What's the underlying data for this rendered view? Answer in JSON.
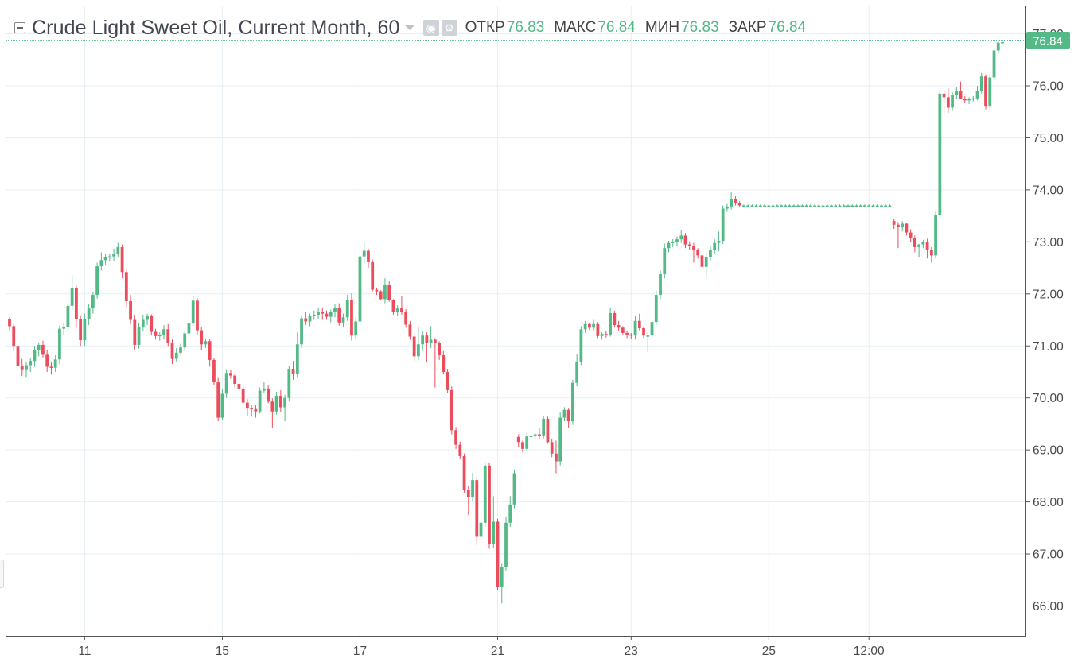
{
  "legend": {
    "title": "Crude Light Sweet Oil, Current Month, 60",
    "open_label": "ОТКР",
    "open_value": "76.83",
    "high_label": "МАКС",
    "high_value": "76.84",
    "low_label": "МИН",
    "low_value": "76.83",
    "close_label": "ЗАКР",
    "close_value": "76.84",
    "icons": [
      "eye-icon",
      "gear-icon",
      "chevron-down-icon"
    ]
  },
  "colors": {
    "up": "#53b987",
    "down": "#eb4d5c",
    "grid": "#e6eff3",
    "axis_text": "#4a4a4a",
    "last_price_bg": "#53b987"
  },
  "price_label": "76.84",
  "chart_data": {
    "type": "candlestick",
    "title": "Crude Light Sweet Oil, Current Month, 60",
    "ylim": [
      65.6,
      77.1
    ],
    "y_ticks": [
      "66.00",
      "67.00",
      "68.00",
      "69.00",
      "70.00",
      "71.00",
      "72.00",
      "73.00",
      "74.00",
      "75.00",
      "76.00",
      "77.00"
    ],
    "x_ticks": [
      {
        "label": "11",
        "slot": 18
      },
      {
        "label": "15",
        "slot": 51
      },
      {
        "label": "17",
        "slot": 84
      },
      {
        "label": "21",
        "slot": 117
      },
      {
        "label": "23",
        "slot": 149
      },
      {
        "label": "25",
        "slot": 182
      },
      {
        "label": "12:00",
        "slot": 206
      }
    ],
    "grid": true,
    "last_price": 76.84,
    "candles_ohlc": [
      [
        71.52,
        71.55,
        71.3,
        71.38
      ],
      [
        71.38,
        71.42,
        70.9,
        71.0
      ],
      [
        71.0,
        71.1,
        70.55,
        70.62
      ],
      [
        70.62,
        70.75,
        70.42,
        70.55
      ],
      [
        70.55,
        70.7,
        70.4,
        70.63
      ],
      [
        70.63,
        70.76,
        70.5,
        70.71
      ],
      [
        70.71,
        71.0,
        70.6,
        70.92
      ],
      [
        70.92,
        71.06,
        70.8,
        71.02
      ],
      [
        71.02,
        71.1,
        70.78,
        70.83
      ],
      [
        70.83,
        70.93,
        70.5,
        70.6
      ],
      [
        70.6,
        70.7,
        70.45,
        70.58
      ],
      [
        70.58,
        70.82,
        70.5,
        70.74
      ],
      [
        70.74,
        71.39,
        70.65,
        71.33
      ],
      [
        71.33,
        71.43,
        71.2,
        71.37
      ],
      [
        71.37,
        71.83,
        71.3,
        71.77
      ],
      [
        71.77,
        72.36,
        71.7,
        72.12
      ],
      [
        72.12,
        72.16,
        71.35,
        71.51
      ],
      [
        71.51,
        71.59,
        71.0,
        71.11
      ],
      [
        71.11,
        71.62,
        71.0,
        71.52
      ],
      [
        71.52,
        71.81,
        71.4,
        71.72
      ],
      [
        71.72,
        72.04,
        71.62,
        71.98
      ],
      [
        71.98,
        72.6,
        71.91,
        72.53
      ],
      [
        72.53,
        72.8,
        72.45,
        72.65
      ],
      [
        72.65,
        72.76,
        72.55,
        72.7
      ],
      [
        72.7,
        72.78,
        72.62,
        72.72
      ],
      [
        72.72,
        72.87,
        72.64,
        72.77
      ],
      [
        72.77,
        72.98,
        72.7,
        72.9
      ],
      [
        72.9,
        72.95,
        72.3,
        72.42
      ],
      [
        72.42,
        72.48,
        71.75,
        71.86
      ],
      [
        71.86,
        71.98,
        71.42,
        71.5
      ],
      [
        71.5,
        71.6,
        70.93,
        71.02
      ],
      [
        71.02,
        71.45,
        70.95,
        71.36
      ],
      [
        71.36,
        71.6,
        71.28,
        71.5
      ],
      [
        71.5,
        71.62,
        71.4,
        71.57
      ],
      [
        71.57,
        71.61,
        71.2,
        71.27
      ],
      [
        71.27,
        71.33,
        71.12,
        71.19
      ],
      [
        71.19,
        71.26,
        71.1,
        71.21
      ],
      [
        71.21,
        71.4,
        71.12,
        71.32
      ],
      [
        71.32,
        71.42,
        71.0,
        71.06
      ],
      [
        71.06,
        71.12,
        70.65,
        70.75
      ],
      [
        70.75,
        70.96,
        70.7,
        70.87
      ],
      [
        70.87,
        71.04,
        70.83,
        70.97
      ],
      [
        70.97,
        71.28,
        70.9,
        71.24
      ],
      [
        71.24,
        71.58,
        71.17,
        71.43
      ],
      [
        71.43,
        71.96,
        71.38,
        71.87
      ],
      [
        71.87,
        71.92,
        71.2,
        71.3
      ],
      [
        71.3,
        71.36,
        70.92,
        71.03
      ],
      [
        71.03,
        71.14,
        70.96,
        71.09
      ],
      [
        71.09,
        71.14,
        70.6,
        70.73
      ],
      [
        70.73,
        70.76,
        70.25,
        70.3
      ],
      [
        70.3,
        70.4,
        69.55,
        69.62
      ],
      [
        69.62,
        70.18,
        69.57,
        70.08
      ],
      [
        70.08,
        70.55,
        70.0,
        70.48
      ],
      [
        70.48,
        70.53,
        70.37,
        70.43
      ],
      [
        70.43,
        70.46,
        70.2,
        70.27
      ],
      [
        70.27,
        70.34,
        70.15,
        70.18
      ],
      [
        70.18,
        70.23,
        69.88,
        69.91
      ],
      [
        69.91,
        69.98,
        69.65,
        69.81
      ],
      [
        69.81,
        69.87,
        69.64,
        69.8
      ],
      [
        69.8,
        69.86,
        69.62,
        69.74
      ],
      [
        69.74,
        70.2,
        69.7,
        70.14
      ],
      [
        70.14,
        70.3,
        70.1,
        70.18
      ],
      [
        70.18,
        70.24,
        69.9,
        69.93
      ],
      [
        69.93,
        69.99,
        69.42,
        69.74
      ],
      [
        69.74,
        70.12,
        69.68,
        70.04
      ],
      [
        70.04,
        70.15,
        69.72,
        69.82
      ],
      [
        69.82,
        70.06,
        69.55,
        70.0
      ],
      [
        70.0,
        70.62,
        69.93,
        70.56
      ],
      [
        70.56,
        70.71,
        70.35,
        70.47
      ],
      [
        70.47,
        71.26,
        70.4,
        71.03
      ],
      [
        71.03,
        71.59,
        70.96,
        71.53
      ],
      [
        71.53,
        71.65,
        71.4,
        71.47
      ],
      [
        71.47,
        71.62,
        71.38,
        71.58
      ],
      [
        71.58,
        71.68,
        71.5,
        71.6
      ],
      [
        71.6,
        71.74,
        71.52,
        71.66
      ],
      [
        71.66,
        71.74,
        71.5,
        71.62
      ],
      [
        71.62,
        71.68,
        71.5,
        71.56
      ],
      [
        71.56,
        71.7,
        71.45,
        71.65
      ],
      [
        71.65,
        71.81,
        71.55,
        71.73
      ],
      [
        71.73,
        71.82,
        71.39,
        71.45
      ],
      [
        71.45,
        71.62,
        71.36,
        71.55
      ],
      [
        71.55,
        71.98,
        71.48,
        71.88
      ],
      [
        71.88,
        72.01,
        71.1,
        71.2
      ],
      [
        71.2,
        71.55,
        71.12,
        71.47
      ],
      [
        71.47,
        72.92,
        71.42,
        72.72
      ],
      [
        72.72,
        72.98,
        72.6,
        72.83
      ],
      [
        72.83,
        72.87,
        72.5,
        72.61
      ],
      [
        72.61,
        72.66,
        72.05,
        72.08
      ],
      [
        72.08,
        72.12,
        71.98,
        72.05
      ],
      [
        72.05,
        72.07,
        71.88,
        71.9
      ],
      [
        71.9,
        72.3,
        71.82,
        72.18
      ],
      [
        72.18,
        72.24,
        71.85,
        71.88
      ],
      [
        71.88,
        71.9,
        71.6,
        71.65
      ],
      [
        71.65,
        71.78,
        71.58,
        71.72
      ],
      [
        71.72,
        71.95,
        71.6,
        71.65
      ],
      [
        71.65,
        71.71,
        71.35,
        71.41
      ],
      [
        71.41,
        71.48,
        71.12,
        71.18
      ],
      [
        71.18,
        71.26,
        70.7,
        70.8
      ],
      [
        70.8,
        71.37,
        70.72,
        71.03
      ],
      [
        71.03,
        71.28,
        70.9,
        71.2
      ],
      [
        71.2,
        71.26,
        70.69,
        71.05
      ],
      [
        71.05,
        71.38,
        70.96,
        71.12
      ],
      [
        71.12,
        71.15,
        70.2,
        71.05
      ],
      [
        71.05,
        71.09,
        70.73,
        70.82
      ],
      [
        70.82,
        70.9,
        70.45,
        70.5
      ],
      [
        70.5,
        70.56,
        70.1,
        70.15
      ],
      [
        70.15,
        70.22,
        69.3,
        69.38
      ],
      [
        69.38,
        69.44,
        69.02,
        69.1
      ],
      [
        69.1,
        69.16,
        68.82,
        68.88
      ],
      [
        68.88,
        68.93,
        68.18,
        68.23
      ],
      [
        68.23,
        68.3,
        67.75,
        68.1
      ],
      [
        68.1,
        68.56,
        68.02,
        68.42
      ],
      [
        68.42,
        68.48,
        67.17,
        67.33
      ],
      [
        67.33,
        67.76,
        66.78,
        67.6
      ],
      [
        67.6,
        68.76,
        67.52,
        68.7
      ],
      [
        68.7,
        68.76,
        67.1,
        67.2
      ],
      [
        67.2,
        68.11,
        67.12,
        67.62
      ],
      [
        67.62,
        67.68,
        66.3,
        66.37
      ],
      [
        66.37,
        66.81,
        66.05,
        66.75
      ],
      [
        66.75,
        67.72,
        66.68,
        67.6
      ],
      [
        67.6,
        68.11,
        67.52,
        67.95
      ],
      [
        67.95,
        68.62,
        67.88,
        68.55
      ],
      [
        69.25,
        69.3,
        69.06,
        69.15
      ],
      [
        69.15,
        69.18,
        68.95,
        69.02
      ],
      [
        69.02,
        69.32,
        68.98,
        69.26
      ],
      [
        69.26,
        69.32,
        69.18,
        69.27
      ],
      [
        69.27,
        69.32,
        69.2,
        69.3
      ],
      [
        69.3,
        69.42,
        69.22,
        69.28
      ],
      [
        69.28,
        69.66,
        69.22,
        69.6
      ],
      [
        69.6,
        69.64,
        69.12,
        69.15
      ],
      [
        69.15,
        69.2,
        68.86,
        68.93
      ],
      [
        68.93,
        69.18,
        68.55,
        68.78
      ],
      [
        68.78,
        69.72,
        68.7,
        69.62
      ],
      [
        69.62,
        69.82,
        69.55,
        69.77
      ],
      [
        69.77,
        69.81,
        69.43,
        69.55
      ],
      [
        69.55,
        70.35,
        69.48,
        70.29
      ],
      [
        70.29,
        70.84,
        70.22,
        70.7
      ],
      [
        70.7,
        71.38,
        70.63,
        71.32
      ],
      [
        71.32,
        71.48,
        71.25,
        71.42
      ],
      [
        71.42,
        71.45,
        71.3,
        71.35
      ],
      [
        71.35,
        71.5,
        71.28,
        71.42
      ],
      [
        71.42,
        71.46,
        71.15,
        71.19
      ],
      [
        71.19,
        71.26,
        71.12,
        71.23
      ],
      [
        71.23,
        71.28,
        71.16,
        71.22
      ],
      [
        71.22,
        71.74,
        71.18,
        71.63
      ],
      [
        71.63,
        71.68,
        71.35,
        71.4
      ],
      [
        71.4,
        71.48,
        71.28,
        71.35
      ],
      [
        71.35,
        71.38,
        71.22,
        71.25
      ],
      [
        71.25,
        71.28,
        71.15,
        71.22
      ],
      [
        71.22,
        71.25,
        71.14,
        71.2
      ],
      [
        71.2,
        71.57,
        71.12,
        71.48
      ],
      [
        71.48,
        71.62,
        71.3,
        71.34
      ],
      [
        71.34,
        71.37,
        71.15,
        71.2
      ],
      [
        71.2,
        71.26,
        70.88,
        71.2
      ],
      [
        71.2,
        71.55,
        71.12,
        71.46
      ],
      [
        71.46,
        72.06,
        71.4,
        71.98
      ],
      [
        71.98,
        72.45,
        71.9,
        72.38
      ],
      [
        72.38,
        72.97,
        72.3,
        72.88
      ],
      [
        72.88,
        73.02,
        72.8,
        72.98
      ],
      [
        72.98,
        73.05,
        72.9,
        73.0
      ],
      [
        73.0,
        73.1,
        72.92,
        73.05
      ],
      [
        73.05,
        73.22,
        72.98,
        73.12
      ],
      [
        73.12,
        73.17,
        72.88,
        72.95
      ],
      [
        72.95,
        73.01,
        72.84,
        72.92
      ],
      [
        72.92,
        72.98,
        72.6,
        72.84
      ],
      [
        72.84,
        72.88,
        72.68,
        72.74
      ],
      [
        72.74,
        72.8,
        72.38,
        72.52
      ],
      [
        72.52,
        72.78,
        72.3,
        72.7
      ],
      [
        72.7,
        72.92,
        72.64,
        72.85
      ],
      [
        72.85,
        73.05,
        72.78,
        72.98
      ],
      [
        72.98,
        73.2,
        72.82,
        73.02
      ],
      [
        73.02,
        73.7,
        72.96,
        73.64
      ],
      [
        73.64,
        73.73,
        73.58,
        73.68
      ],
      [
        73.68,
        73.97,
        73.62,
        73.82
      ],
      [
        73.82,
        73.88,
        73.7,
        73.75
      ],
      [
        73.75,
        73.78,
        73.68,
        73.7
      ],
      [
        73.7,
        73.72,
        73.68,
        73.7
      ],
      [
        73.7,
        73.72,
        73.68,
        73.7
      ],
      [
        73.7,
        73.72,
        73.68,
        73.7
      ],
      [
        73.7,
        73.72,
        73.68,
        73.7
      ],
      [
        73.7,
        73.72,
        73.68,
        73.7
      ],
      [
        73.7,
        73.72,
        73.68,
        73.7
      ],
      [
        73.7,
        73.72,
        73.68,
        73.7
      ],
      [
        73.7,
        73.72,
        73.68,
        73.7
      ],
      [
        73.7,
        73.72,
        73.68,
        73.7
      ],
      [
        73.7,
        73.72,
        73.68,
        73.7
      ],
      [
        73.7,
        73.72,
        73.68,
        73.7
      ],
      [
        73.7,
        73.72,
        73.68,
        73.7
      ],
      [
        73.7,
        73.72,
        73.68,
        73.7
      ],
      [
        73.7,
        73.72,
        73.68,
        73.7
      ],
      [
        73.7,
        73.72,
        73.68,
        73.7
      ],
      [
        73.7,
        73.72,
        73.68,
        73.7
      ],
      [
        73.7,
        73.72,
        73.68,
        73.7
      ],
      [
        73.7,
        73.72,
        73.68,
        73.7
      ],
      [
        73.7,
        73.72,
        73.68,
        73.7
      ],
      [
        73.7,
        73.72,
        73.68,
        73.7
      ],
      [
        73.7,
        73.72,
        73.68,
        73.7
      ],
      [
        73.7,
        73.72,
        73.68,
        73.7
      ],
      [
        73.7,
        73.72,
        73.68,
        73.7
      ],
      [
        73.7,
        73.72,
        73.68,
        73.7
      ],
      [
        73.7,
        73.72,
        73.68,
        73.7
      ],
      [
        73.7,
        73.72,
        73.68,
        73.7
      ],
      [
        73.7,
        73.72,
        73.68,
        73.7
      ],
      [
        73.7,
        73.72,
        73.68,
        73.7
      ],
      [
        73.7,
        73.72,
        73.68,
        73.7
      ],
      [
        73.7,
        73.72,
        73.68,
        73.7
      ],
      [
        73.7,
        73.72,
        73.68,
        73.7
      ],
      [
        73.7,
        73.72,
        73.68,
        73.7
      ],
      [
        73.7,
        73.72,
        73.68,
        73.7
      ],
      [
        73.7,
        73.72,
        73.68,
        73.7
      ],
      [
        73.7,
        73.72,
        73.68,
        73.7
      ],
      [
        73.7,
        73.72,
        73.68,
        73.7
      ],
      [
        73.4,
        73.45,
        73.25,
        73.33
      ],
      [
        73.33,
        73.38,
        72.88,
        73.28
      ],
      [
        73.28,
        73.4,
        73.2,
        73.35
      ],
      [
        73.35,
        73.37,
        73.12,
        73.18
      ],
      [
        73.18,
        73.24,
        73.0,
        73.08
      ],
      [
        73.08,
        73.12,
        72.8,
        72.9
      ],
      [
        72.9,
        72.96,
        72.7,
        72.95
      ],
      [
        72.95,
        73.04,
        72.88,
        73.0
      ],
      [
        73.0,
        73.06,
        72.68,
        72.85
      ],
      [
        72.85,
        72.9,
        72.6,
        72.74
      ],
      [
        72.74,
        73.58,
        72.68,
        73.52
      ],
      [
        73.52,
        75.92,
        73.45,
        75.85
      ],
      [
        75.85,
        75.92,
        75.5,
        75.78
      ],
      [
        75.78,
        75.95,
        75.48,
        75.58
      ],
      [
        75.58,
        75.88,
        75.52,
        75.82
      ],
      [
        75.82,
        75.98,
        75.75,
        75.9
      ],
      [
        75.9,
        76.08,
        75.82,
        75.75
      ],
      [
        75.75,
        75.8,
        75.68,
        75.72
      ],
      [
        75.72,
        75.78,
        75.65,
        75.75
      ],
      [
        75.75,
        75.8,
        75.7,
        75.76
      ],
      [
        75.76,
        76.0,
        75.72,
        75.9
      ],
      [
        75.9,
        76.25,
        75.85,
        76.18
      ],
      [
        76.18,
        76.22,
        75.55,
        75.6
      ],
      [
        75.6,
        76.22,
        75.55,
        76.16
      ],
      [
        76.16,
        76.75,
        76.1,
        76.68
      ],
      [
        76.68,
        76.9,
        76.62,
        76.83
      ],
      [
        76.83,
        76.84,
        76.83,
        76.84
      ]
    ]
  }
}
